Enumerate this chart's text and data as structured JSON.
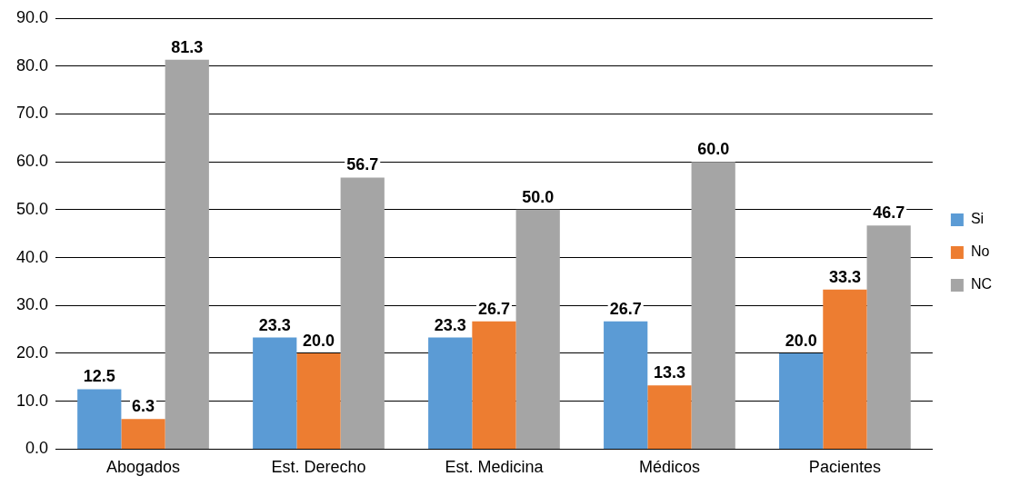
{
  "chart_data": {
    "type": "bar",
    "categories": [
      "Abogados",
      "Est. Derecho",
      "Est. Medicina",
      "Médicos",
      "Pacientes"
    ],
    "series": [
      {
        "name": "Si",
        "color": "#5b9bd5",
        "values": [
          12.5,
          23.3,
          23.3,
          26.7,
          20.0
        ],
        "value_labels": [
          "12.5",
          "23.3",
          "23.3",
          "26.7",
          "20.0"
        ]
      },
      {
        "name": "No",
        "color": "#ed7d31",
        "values": [
          6.3,
          20.0,
          26.7,
          13.3,
          33.3
        ],
        "value_labels": [
          "6.3",
          "20.0",
          "26.7",
          "13.3",
          "33.3"
        ]
      },
      {
        "name": "NC",
        "color": "#a5a5a5",
        "values": [
          81.3,
          56.7,
          50.0,
          60.0,
          46.7
        ],
        "value_labels": [
          "81.3",
          "56.7",
          "50.0",
          "60.0",
          "46.7"
        ]
      }
    ],
    "ylim": [
      0,
      90
    ],
    "yticks": [
      {
        "value": 0,
        "label": "0.0"
      },
      {
        "value": 10,
        "label": "10.0"
      },
      {
        "value": 20,
        "label": "20.0"
      },
      {
        "value": 30,
        "label": "30.0"
      },
      {
        "value": 40,
        "label": "40.0"
      },
      {
        "value": 50,
        "label": "50.0"
      },
      {
        "value": 60,
        "label": "60.0"
      },
      {
        "value": 70,
        "label": "70.0"
      },
      {
        "value": 80,
        "label": "80.0"
      },
      {
        "value": 90,
        "label": "90.0"
      }
    ],
    "grid": "y",
    "legend": "right"
  }
}
